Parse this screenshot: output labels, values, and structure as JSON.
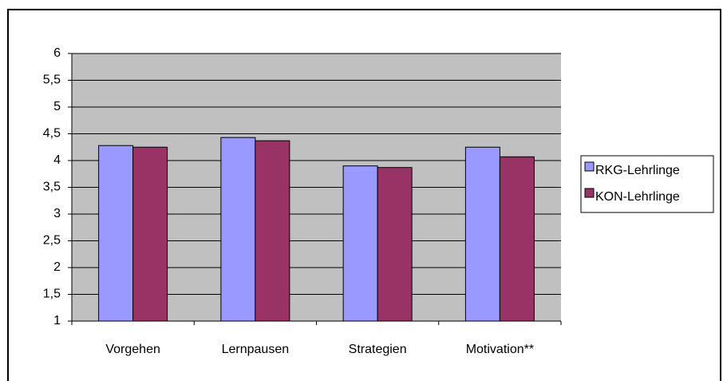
{
  "chart_data": {
    "type": "bar",
    "categories": [
      "Vorgehen",
      "Lernpausen",
      "Strategien",
      "Motivation**"
    ],
    "series": [
      {
        "name": "RKG-Lehrlinge",
        "color": "#9999ff",
        "values": [
          4.28,
          4.43,
          3.9,
          4.25
        ]
      },
      {
        "name": "KON-Lehrlinge",
        "color": "#993366",
        "values": [
          4.25,
          4.37,
          3.87,
          4.07
        ]
      }
    ],
    "ylim": [
      1,
      6
    ],
    "yticks": [
      1,
      {
        "value": 1.5,
        "label": "1,5"
      },
      2,
      {
        "value": 2.5,
        "label": "2,5"
      },
      3,
      {
        "value": 3.5,
        "label": "3,5"
      },
      4,
      {
        "value": 4.5,
        "label": "4,5"
      },
      5,
      {
        "value": 5.5,
        "label": "5,5"
      },
      6
    ],
    "grid": true,
    "plot_background": "#c0c0c0",
    "legend": "right"
  }
}
